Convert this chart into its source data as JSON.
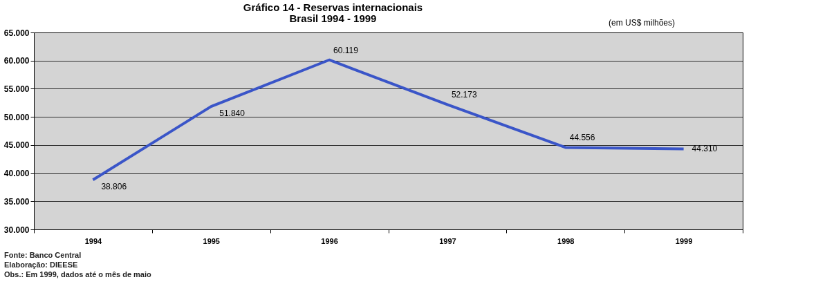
{
  "chart_data": {
    "type": "line",
    "title": "Gráfico 14 - Reservas internacionais",
    "subtitle": "Brasil 1994 - 1999",
    "categories": [
      "1994",
      "1995",
      "1996",
      "1997",
      "1998",
      "1999"
    ],
    "series": [
      {
        "color": "#3a55c8",
        "values": [
          38806,
          51840,
          60119,
          52173,
          44556,
          44310
        ],
        "value_labels": [
          "38.806",
          "51.840",
          "60.119",
          "52.173",
          "44.556",
          "44.310"
        ]
      }
    ],
    "ylim": [
      30000,
      65000
    ],
    "yticks": [
      {
        "value": 30000,
        "label": "30.000"
      },
      {
        "value": 35000,
        "label": "35.000"
      },
      {
        "value": 40000,
        "label": "40.000"
      },
      {
        "value": 45000,
        "label": "45.000"
      },
      {
        "value": 50000,
        "label": "50.000"
      },
      {
        "value": 55000,
        "label": "55.000"
      },
      {
        "value": 60000,
        "label": "60.000"
      },
      {
        "value": 65000,
        "label": "65.000"
      }
    ],
    "grid": "y",
    "marker": "none",
    "line_style": "solid",
    "annotations": [
      "(em US$ milhões)",
      "Fonte: Banco Central",
      "Elaboração: DIEESE",
      "Obs.: Em 1999, dados até o mês de maio"
    ]
  }
}
